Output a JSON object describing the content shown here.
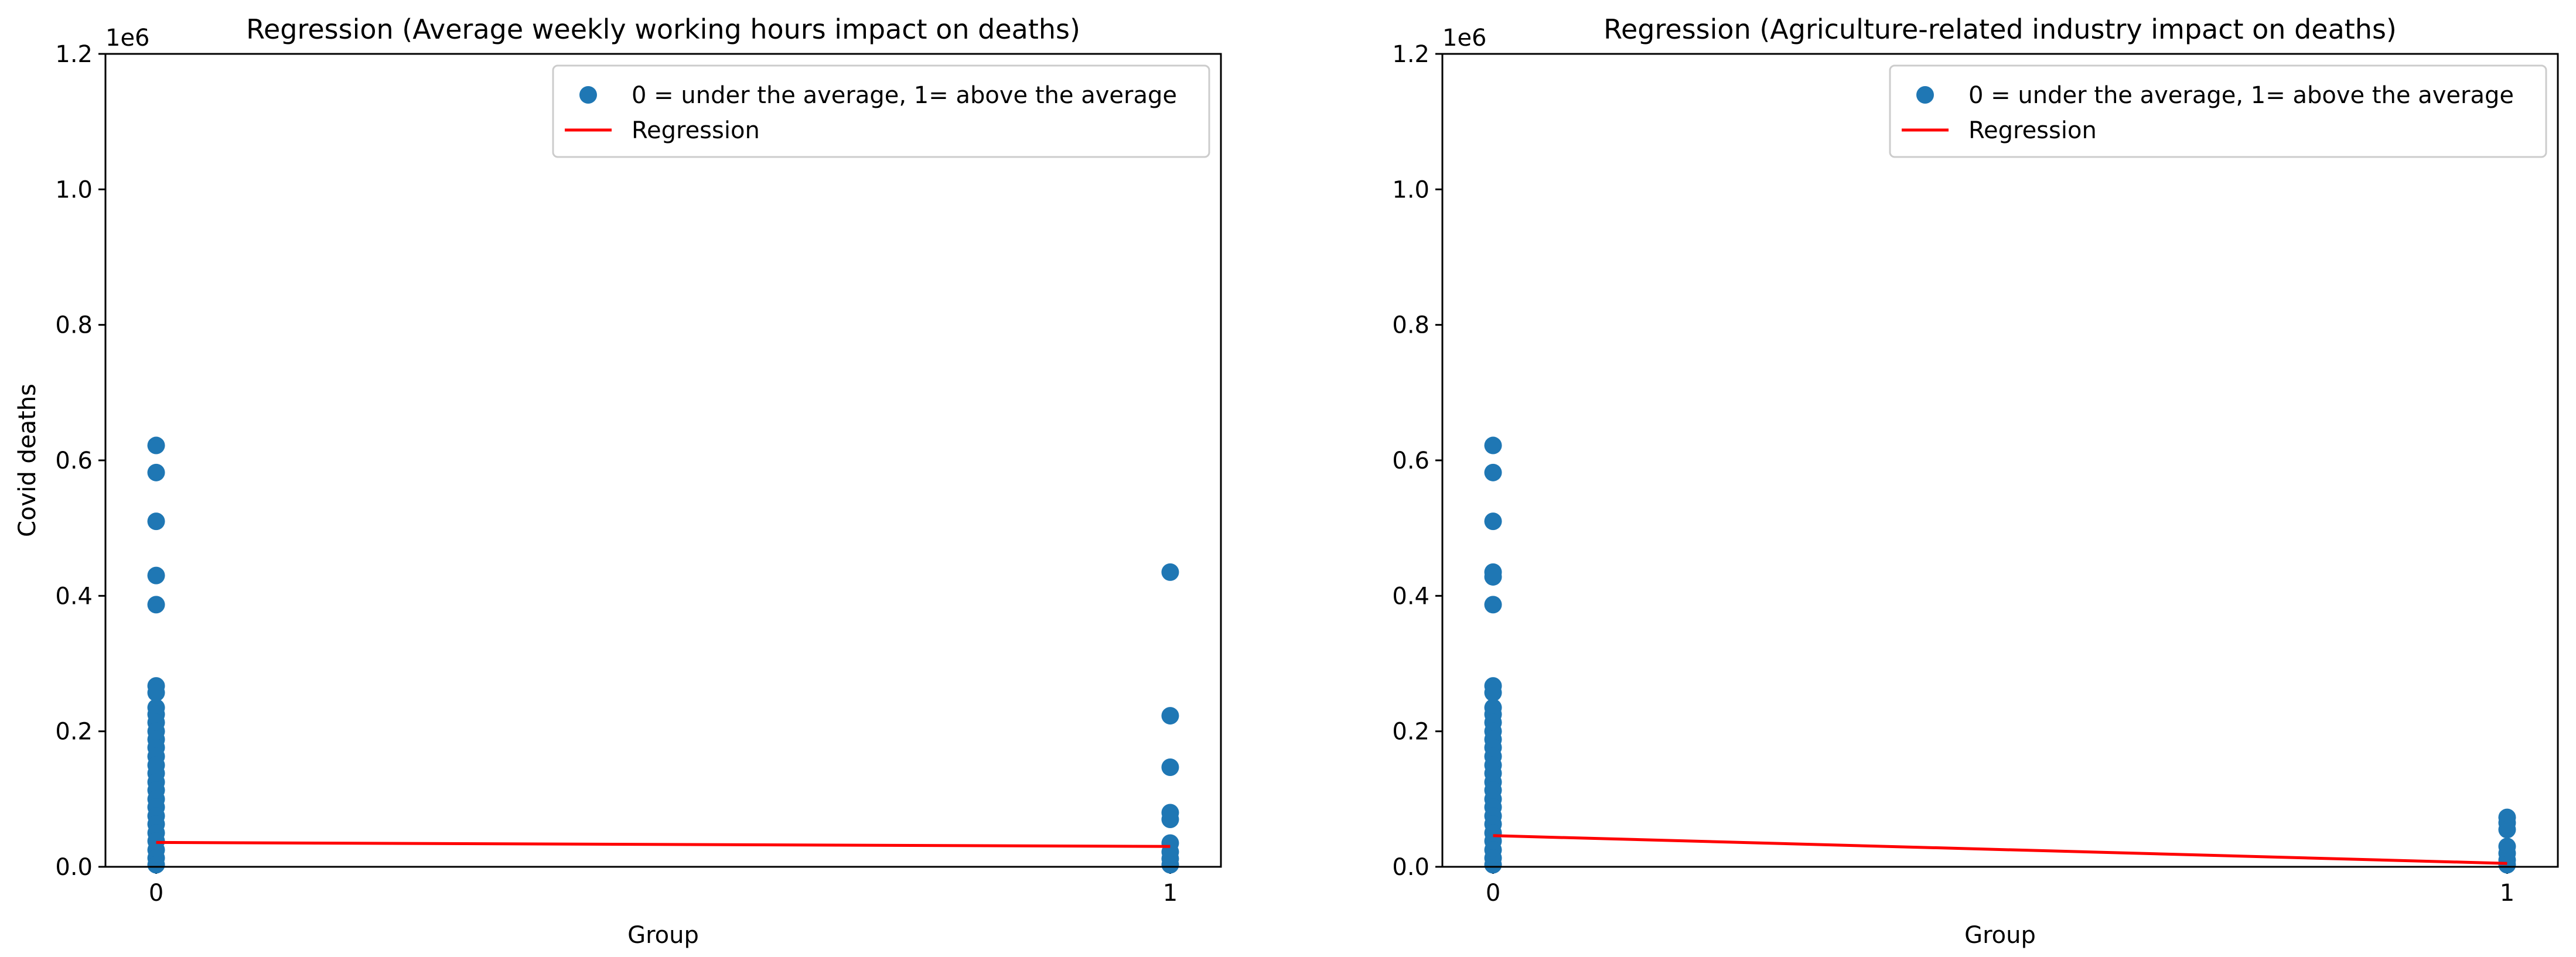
{
  "chart_data": [
    {
      "type": "scatter",
      "title": "Regression (Average weekly working hours impact on deaths)",
      "xlabel": "Group",
      "ylabel": "Covid deaths",
      "y_offset_label": "1e6",
      "xlim": [
        -0.05,
        1.05
      ],
      "ylim": [
        0,
        1.2
      ],
      "x_ticks": [
        {
          "value": 0,
          "label": "0"
        },
        {
          "value": 1,
          "label": "1"
        }
      ],
      "y_ticks": [
        {
          "value": 0.0,
          "label": "0.0"
        },
        {
          "value": 0.2,
          "label": "0.2"
        },
        {
          "value": 0.4,
          "label": "0.4"
        },
        {
          "value": 0.6,
          "label": "0.6"
        },
        {
          "value": 0.8,
          "label": "0.8"
        },
        {
          "value": 1.0,
          "label": "1.0"
        },
        {
          "value": 1.2,
          "label": "1.2"
        }
      ],
      "grid": false,
      "legend_position": "top-right",
      "series": [
        {
          "name": "0 = under the average, 1= above the average",
          "kind": "scatter",
          "color": "#1f77b4",
          "points": [
            [
              0,
              0.622
            ],
            [
              0,
              0.582
            ],
            [
              0,
              0.51
            ],
            [
              0,
              0.43
            ],
            [
              0,
              0.387
            ],
            [
              0,
              0.267
            ],
            [
              0,
              0.257
            ],
            [
              0,
              0.235
            ],
            [
              0,
              0.225
            ],
            [
              0,
              0.213
            ],
            [
              0,
              0.2
            ],
            [
              0,
              0.188
            ],
            [
              0,
              0.176
            ],
            [
              0,
              0.163
            ],
            [
              0,
              0.15
            ],
            [
              0,
              0.138
            ],
            [
              0,
              0.125
            ],
            [
              0,
              0.113
            ],
            [
              0,
              0.1
            ],
            [
              0,
              0.088
            ],
            [
              0,
              0.075
            ],
            [
              0,
              0.063
            ],
            [
              0,
              0.05
            ],
            [
              0,
              0.038
            ],
            [
              0,
              0.025
            ],
            [
              0,
              0.013
            ],
            [
              0,
              0.003
            ],
            [
              1,
              0.435
            ],
            [
              1,
              0.223
            ],
            [
              1,
              0.147
            ],
            [
              1,
              0.08
            ],
            [
              1,
              0.07
            ],
            [
              1,
              0.035
            ],
            [
              1,
              0.022
            ],
            [
              1,
              0.012
            ],
            [
              1,
              0.003
            ]
          ]
        },
        {
          "name": "Regression",
          "kind": "line",
          "color": "#ff0000",
          "points": [
            [
              0,
              0.036
            ],
            [
              1,
              0.03
            ]
          ]
        }
      ]
    },
    {
      "type": "scatter",
      "title": "Regression (Agriculture-related industry impact on deaths)",
      "xlabel": "Group",
      "ylabel": "Covid deaths",
      "y_offset_label": "1e6",
      "xlim": [
        -0.05,
        1.05
      ],
      "ylim": [
        0,
        1.2
      ],
      "x_ticks": [
        {
          "value": 0,
          "label": "0"
        },
        {
          "value": 1,
          "label": "1"
        }
      ],
      "y_ticks": [
        {
          "value": 0.0,
          "label": "0.0"
        },
        {
          "value": 0.2,
          "label": "0.2"
        },
        {
          "value": 0.4,
          "label": "0.4"
        },
        {
          "value": 0.6,
          "label": "0.6"
        },
        {
          "value": 0.8,
          "label": "0.8"
        },
        {
          "value": 1.0,
          "label": "1.0"
        },
        {
          "value": 1.2,
          "label": "1.2"
        }
      ],
      "grid": false,
      "legend_position": "top-right",
      "series": [
        {
          "name": "0 = under the average, 1= above the average",
          "kind": "scatter",
          "color": "#1f77b4",
          "points": [
            [
              0,
              0.622
            ],
            [
              0,
              0.582
            ],
            [
              0,
              0.51
            ],
            [
              0,
              0.435
            ],
            [
              0,
              0.428
            ],
            [
              0,
              0.387
            ],
            [
              0,
              0.267
            ],
            [
              0,
              0.257
            ],
            [
              0,
              0.235
            ],
            [
              0,
              0.225
            ],
            [
              0,
              0.213
            ],
            [
              0,
              0.2
            ],
            [
              0,
              0.188
            ],
            [
              0,
              0.176
            ],
            [
              0,
              0.163
            ],
            [
              0,
              0.15
            ],
            [
              0,
              0.138
            ],
            [
              0,
              0.125
            ],
            [
              0,
              0.113
            ],
            [
              0,
              0.1
            ],
            [
              0,
              0.088
            ],
            [
              0,
              0.075
            ],
            [
              0,
              0.063
            ],
            [
              0,
              0.05
            ],
            [
              0,
              0.038
            ],
            [
              0,
              0.025
            ],
            [
              0,
              0.013
            ],
            [
              0,
              0.003
            ],
            [
              1,
              0.073
            ],
            [
              1,
              0.065
            ],
            [
              1,
              0.055
            ],
            [
              1,
              0.03
            ],
            [
              1,
              0.02
            ],
            [
              1,
              0.01
            ],
            [
              1,
              0.003
            ]
          ]
        },
        {
          "name": "Regression",
          "kind": "line",
          "color": "#ff0000",
          "points": [
            [
              0,
              0.046
            ],
            [
              1,
              0.005
            ]
          ]
        }
      ]
    }
  ]
}
